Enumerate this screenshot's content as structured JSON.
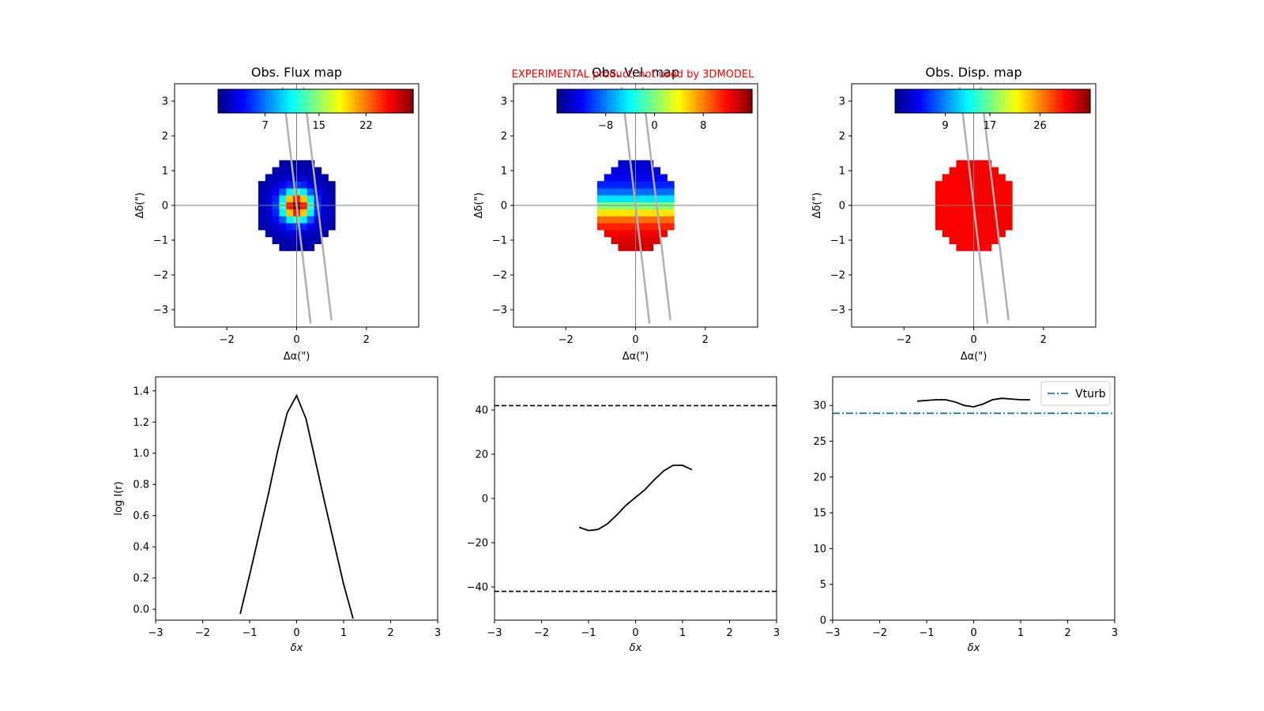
{
  "banner": {
    "text": "EXPERIMENTAL product, not used by 3DMODEL",
    "color": "#ff0000"
  },
  "colors": {
    "line": "#000000",
    "vturb": "#1f77b4",
    "grid": "#808080",
    "slit": "#b0b0b0"
  },
  "chart_data": [
    {
      "type": "heatmap",
      "title": "Obs. Flux map",
      "xlabel": "Δα(\")",
      "ylabel": "Δδ(\")",
      "xlim": [
        -3.5,
        3.5
      ],
      "ylim": [
        -3.5,
        3.5
      ],
      "xticks": [
        -2,
        0,
        2
      ],
      "yticks": [
        -3,
        -2,
        -1,
        0,
        1,
        2,
        3
      ],
      "colorbar": {
        "cmap": "jet",
        "range": [
          0,
          29
        ],
        "ticks": [
          7,
          15,
          22
        ]
      },
      "pixel_size": 0.2,
      "mode": "flux"
    },
    {
      "type": "heatmap",
      "title": "Obs. Vel. map",
      "xlabel": "Δα(\")",
      "ylabel": "Δδ(\")",
      "xlim": [
        -3.5,
        3.5
      ],
      "ylim": [
        -3.5,
        3.5
      ],
      "xticks": [
        -2,
        0,
        2
      ],
      "yticks": [
        -3,
        -2,
        -1,
        0,
        1,
        2,
        3
      ],
      "colorbar": {
        "cmap": "jet",
        "range": [
          -16,
          16
        ],
        "ticks": [
          -8,
          0,
          8
        ]
      },
      "pixel_size": 0.2,
      "mode": "velocity"
    },
    {
      "type": "heatmap",
      "title": "Obs. Disp. map",
      "xlabel": "Δα(\")",
      "ylabel": "Δδ(\")",
      "xlim": [
        -3.5,
        3.5
      ],
      "ylim": [
        -3.5,
        3.5
      ],
      "xticks": [
        -2,
        0,
        2
      ],
      "yticks": [
        -3,
        -2,
        -1,
        0,
        1,
        2,
        3
      ],
      "colorbar": {
        "cmap": "jet",
        "range": [
          0,
          35
        ],
        "ticks": [
          9,
          17,
          26
        ]
      },
      "pixel_size": 0.2,
      "mode": "dispersion"
    },
    {
      "type": "line",
      "title": "",
      "xlabel": "δx",
      "ylabel": "log I(r)",
      "xlim": [
        -3,
        3
      ],
      "ylim": [
        -0.07,
        1.49
      ],
      "xticks": [
        -3,
        -2,
        -1,
        0,
        1,
        2,
        3
      ],
      "yticks": [
        0.0,
        0.2,
        0.4,
        0.6,
        0.8,
        1.0,
        1.2,
        1.4
      ],
      "ytick_labels": [
        "0.0",
        "0.2",
        "0.4",
        "0.6",
        "0.8",
        "1.0",
        "1.2",
        "1.4"
      ],
      "series": [
        {
          "name": "profile",
          "x": [
            -1.2,
            -1.0,
            -0.8,
            -0.6,
            -0.4,
            -0.2,
            0.0,
            0.2,
            0.4,
            0.6,
            0.8,
            1.0,
            1.2
          ],
          "y": [
            -0.03,
            0.22,
            0.48,
            0.74,
            1.02,
            1.26,
            1.37,
            1.22,
            0.95,
            0.68,
            0.42,
            0.16,
            -0.06
          ]
        }
      ]
    },
    {
      "type": "line",
      "title": "",
      "xlabel": "δx",
      "ylabel": "",
      "xlim": [
        -3,
        3
      ],
      "ylim": [
        -55,
        55
      ],
      "xticks": [
        -3,
        -2,
        -1,
        0,
        1,
        2,
        3
      ],
      "yticks": [
        -40,
        -20,
        0,
        20,
        40
      ],
      "ytick_labels": [
        "−40",
        "−20",
        "0",
        "20",
        "40"
      ],
      "hlines": [
        42,
        -42
      ],
      "series": [
        {
          "name": "velocity",
          "x": [
            -1.2,
            -1.0,
            -0.8,
            -0.6,
            -0.4,
            -0.2,
            0.0,
            0.2,
            0.4,
            0.6,
            0.8,
            1.0,
            1.2
          ],
          "y": [
            -13,
            -14.5,
            -14,
            -11.5,
            -7.5,
            -3,
            0.5,
            4,
            8.5,
            12.5,
            15,
            15,
            13
          ]
        }
      ]
    },
    {
      "type": "line",
      "title": "",
      "xlabel": "δx",
      "ylabel": "",
      "xlim": [
        -3,
        3
      ],
      "ylim": [
        0,
        34
      ],
      "xticks": [
        -3,
        -2,
        -1,
        0,
        1,
        2,
        3
      ],
      "yticks": [
        0,
        5,
        10,
        15,
        20,
        25,
        30
      ],
      "ytick_labels": [
        "0",
        "5",
        "10",
        "15",
        "20",
        "25",
        "30"
      ],
      "hlines_named": [
        {
          "name": "Vturb",
          "y": 28.9
        }
      ],
      "legend": {
        "labels": [
          "Vturb"
        ],
        "loc": "top-right"
      },
      "series": [
        {
          "name": "dispersion",
          "x": [
            -1.2,
            -1.0,
            -0.8,
            -0.6,
            -0.4,
            -0.2,
            0.0,
            0.2,
            0.4,
            0.6,
            0.8,
            1.0,
            1.2
          ],
          "y": [
            30.6,
            30.7,
            30.8,
            30.8,
            30.5,
            30.0,
            29.8,
            30.2,
            30.8,
            31.0,
            30.9,
            30.8,
            30.8
          ]
        }
      ]
    }
  ]
}
